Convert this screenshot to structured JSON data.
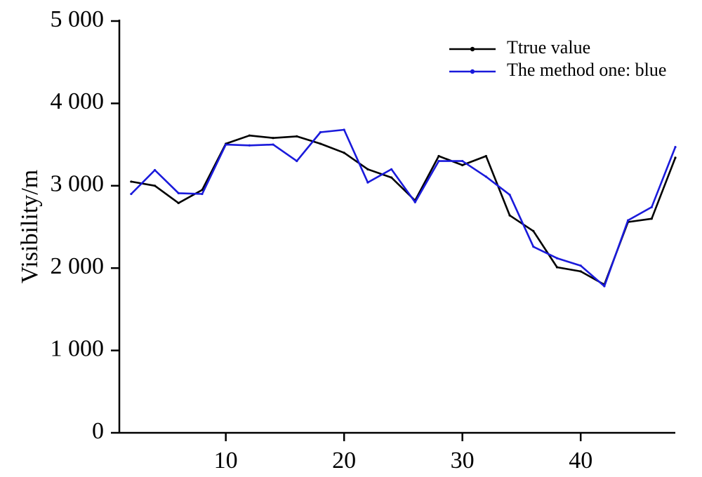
{
  "chart_data": {
    "type": "line",
    "title": "",
    "xlabel": "",
    "ylabel": "Visibility/m",
    "xlim": [
      1,
      48
    ],
    "ylim": [
      0,
      5000
    ],
    "x_ticks": [
      10,
      20,
      30,
      40
    ],
    "x_tick_labels": [
      "10",
      "20",
      "30",
      "40"
    ],
    "y_ticks": [
      0,
      1000,
      2000,
      3000,
      4000,
      5000
    ],
    "y_tick_labels": [
      "0",
      "1 000",
      "2 000",
      "3 000",
      "4 000",
      "5 000"
    ],
    "grid": false,
    "legend_position": "top-right",
    "x": [
      2,
      4,
      6,
      8,
      10,
      12,
      14,
      16,
      18,
      20,
      22,
      24,
      26,
      28,
      30,
      32,
      34,
      36,
      38,
      40,
      42,
      44,
      46,
      48
    ],
    "series": [
      {
        "name": "Ttrue value",
        "color": "#000000",
        "values": [
          3050,
          3000,
          2790,
          2950,
          3510,
          3610,
          3580,
          3600,
          3510,
          3400,
          3200,
          3100,
          2820,
          3360,
          3250,
          3360,
          2640,
          2450,
          2010,
          1960,
          1800,
          2560,
          2600,
          3340
        ]
      },
      {
        "name": "The method one: blue",
        "color": "#1a1adb",
        "values": [
          2900,
          3190,
          2910,
          2900,
          3500,
          3490,
          3500,
          3300,
          3650,
          3680,
          3040,
          3200,
          2800,
          3300,
          3300,
          3110,
          2890,
          2260,
          2120,
          2030,
          1780,
          2580,
          2740,
          3470
        ]
      }
    ]
  }
}
